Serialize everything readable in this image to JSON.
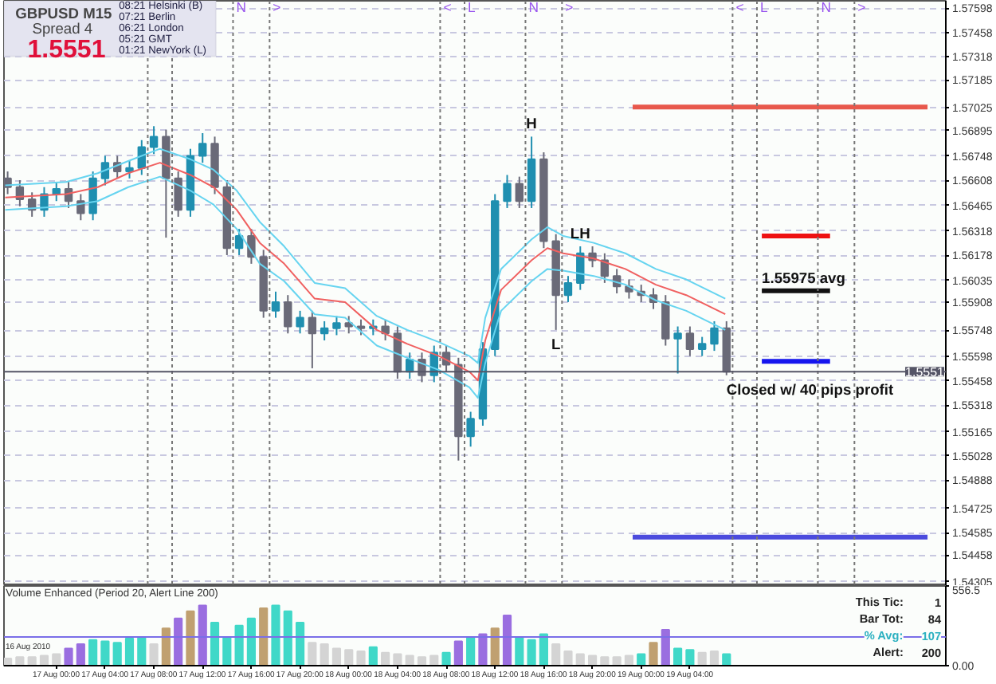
{
  "chart_data": [
    {
      "type": "candlestick",
      "title": "GBPUSD  M15",
      "subtitle": "Spread  4",
      "x": [
        "2010-08-16T20:00",
        "2010-08-16T21:00",
        "2010-08-16T22:00",
        "2010-08-16T23:00",
        "2010-08-17T00:00",
        "2010-08-17T01:00",
        "2010-08-17T02:00",
        "2010-08-17T03:00",
        "2010-08-17T04:00",
        "2010-08-17T05:00",
        "2010-08-17T06:00",
        "2010-08-17T07:00",
        "2010-08-17T08:00",
        "2010-08-17T09:00",
        "2010-08-17T10:00",
        "2010-08-17T11:00",
        "2010-08-17T12:00",
        "2010-08-17T13:00",
        "2010-08-17T14:00",
        "2010-08-17T15:00",
        "2010-08-17T16:00",
        "2010-08-17T17:00",
        "2010-08-17T18:00",
        "2010-08-17T19:00",
        "2010-08-17T20:00",
        "2010-08-17T21:00",
        "2010-08-17T22:00",
        "2010-08-17T23:00",
        "2010-08-18T00:00",
        "2010-08-18T01:00",
        "2010-08-18T02:00",
        "2010-08-18T03:00",
        "2010-08-18T04:00",
        "2010-08-18T05:00",
        "2010-08-18T06:00",
        "2010-08-18T07:00",
        "2010-08-18T08:00",
        "2010-08-18T09:00",
        "2010-08-18T10:00",
        "2010-08-18T11:00",
        "2010-08-18T12:00",
        "2010-08-18T13:00",
        "2010-08-18T14:00",
        "2010-08-18T15:00",
        "2010-08-18T16:00",
        "2010-08-18T17:00",
        "2010-08-18T18:00",
        "2010-08-18T19:00",
        "2010-08-18T20:00",
        "2010-08-18T21:00",
        "2010-08-18T22:00",
        "2010-08-18T23:00",
        "2010-08-19T00:00",
        "2010-08-19T01:00",
        "2010-08-19T02:00",
        "2010-08-19T03:00",
        "2010-08-19T04:00",
        "2010-08-19T05:00",
        "2010-08-19T06:00",
        "2010-08-19T07:00"
      ],
      "ohlc": [
        [
          1.5662,
          1.5666,
          1.5653,
          1.5657
        ],
        [
          1.5657,
          1.5661,
          1.5646,
          1.565
        ],
        [
          1.565,
          1.5654,
          1.564,
          1.5644
        ],
        [
          1.5644,
          1.5657,
          1.564,
          1.5653
        ],
        [
          1.5653,
          1.566,
          1.5649,
          1.5656
        ],
        [
          1.5656,
          1.566,
          1.5645,
          1.5649
        ],
        [
          1.5649,
          1.5653,
          1.5638,
          1.5642
        ],
        [
          1.5642,
          1.5666,
          1.5638,
          1.5662
        ],
        [
          1.5662,
          1.5675,
          1.5658,
          1.5671
        ],
        [
          1.5671,
          1.5675,
          1.5662,
          1.5666
        ],
        [
          1.5666,
          1.5672,
          1.5662,
          1.5668
        ],
        [
          1.5668,
          1.5684,
          1.5664,
          1.568
        ],
        [
          1.568,
          1.5692,
          1.5676,
          1.5686
        ],
        [
          1.5686,
          1.569,
          1.5628,
          1.5662
        ],
        [
          1.5662,
          1.5666,
          1.564,
          1.5644
        ],
        [
          1.5644,
          1.5679,
          1.564,
          1.5675
        ],
        [
          1.5675,
          1.5688,
          1.5671,
          1.5682
        ],
        [
          1.5682,
          1.5686,
          1.5653,
          1.5657
        ],
        [
          1.5657,
          1.5661,
          1.5618,
          1.5622
        ],
        [
          1.5622,
          1.5633,
          1.5618,
          1.5629
        ],
        [
          1.5629,
          1.5633,
          1.5613,
          1.5617
        ],
        [
          1.5617,
          1.5621,
          1.5582,
          1.5586
        ],
        [
          1.5586,
          1.5597,
          1.5582,
          1.5591
        ],
        [
          1.5591,
          1.5595,
          1.5573,
          1.5577
        ],
        [
          1.5577,
          1.5586,
          1.5573,
          1.5582
        ],
        [
          1.5582,
          1.5586,
          1.5553,
          1.5573
        ],
        [
          1.5573,
          1.558,
          1.5569,
          1.5576
        ],
        [
          1.5576,
          1.5583,
          1.5572,
          1.5579
        ],
        [
          1.5579,
          1.5583,
          1.5573,
          1.5577
        ],
        [
          1.5577,
          1.5581,
          1.5572,
          1.5576
        ],
        [
          1.5576,
          1.5581,
          1.5572,
          1.5577
        ],
        [
          1.5577,
          1.5581,
          1.5569,
          1.5573
        ],
        [
          1.5573,
          1.5577,
          1.5547,
          1.5551
        ],
        [
          1.5551,
          1.5562,
          1.5547,
          1.5558
        ],
        [
          1.5558,
          1.5562,
          1.5545,
          1.5549
        ],
        [
          1.5549,
          1.5566,
          1.5545,
          1.5562
        ],
        [
          1.5562,
          1.5566,
          1.5551,
          1.5555
        ],
        [
          1.5555,
          1.5559,
          1.55,
          1.5514
        ],
        [
          1.5514,
          1.5528,
          1.5508,
          1.5524
        ],
        [
          1.5524,
          1.5568,
          1.552,
          1.5564
        ],
        [
          1.5564,
          1.5653,
          1.556,
          1.5649
        ],
        [
          1.5649,
          1.5664,
          1.5645,
          1.5659
        ],
        [
          1.5659,
          1.5663,
          1.5645,
          1.5649
        ],
        [
          1.5649,
          1.5686,
          1.5645,
          1.5673
        ],
        [
          1.5673,
          1.5677,
          1.5622,
          1.5626
        ],
        [
          1.5626,
          1.563,
          1.5575,
          1.5595
        ],
        [
          1.5595,
          1.5606,
          1.5591,
          1.5602
        ],
        [
          1.5602,
          1.5623,
          1.5598,
          1.5619
        ],
        [
          1.5619,
          1.5623,
          1.5611,
          1.5615
        ],
        [
          1.5615,
          1.5619,
          1.5602,
          1.5606
        ],
        [
          1.5606,
          1.561,
          1.5596,
          1.56
        ],
        [
          1.56,
          1.5604,
          1.5593,
          1.5597
        ],
        [
          1.5597,
          1.5601,
          1.5591,
          1.5595
        ],
        [
          1.5595,
          1.5599,
          1.5587,
          1.5591
        ],
        [
          1.5591,
          1.5595,
          1.5566,
          1.557
        ],
        [
          1.557,
          1.5577,
          1.555,
          1.5573
        ],
        [
          1.5573,
          1.5577,
          1.556,
          1.5564
        ],
        [
          1.5564,
          1.5571,
          1.556,
          1.5567
        ],
        [
          1.5567,
          1.558,
          1.5563,
          1.5576
        ],
        [
          1.5576,
          1.558,
          1.5549,
          1.5551
        ]
      ],
      "series": [
        {
          "type": "line",
          "color": "#66d4f0",
          "x": [
            "2010-08-16T19:48",
            "2010-08-17T00:48",
            "2010-08-17T03:24",
            "2010-08-17T05:54",
            "2010-08-17T08:30",
            "2010-08-17T11:00",
            "2010-08-17T12:54",
            "2010-08-17T14:48",
            "2010-08-17T16:42",
            "2010-08-17T18:42",
            "2010-08-17T21:12",
            "2010-08-17T23:42",
            "2010-08-18T02:18",
            "2010-08-18T04:48",
            "2010-08-18T07:24",
            "2010-08-18T09:54",
            "2010-08-18T10:36",
            "2010-08-18T11:12",
            "2010-08-18T12:30",
            "2010-08-18T15:00",
            "2010-08-18T16:18",
            "2010-08-18T17:36",
            "2010-08-18T20:06",
            "2010-08-18T22:42",
            "2010-08-19T01:12",
            "2010-08-19T03:42",
            "2010-08-19T06:54"
          ],
          "values": [
            1.5658,
            1.566,
            1.5665,
            1.5672,
            1.5679,
            1.5673,
            1.5667,
            1.5655,
            1.5637,
            1.5623,
            1.5602,
            1.5599,
            1.5583,
            1.5575,
            1.5568,
            1.556,
            1.5556,
            1.5582,
            1.561,
            1.5627,
            1.5634,
            1.5629,
            1.5625,
            1.5619,
            1.561,
            1.5604,
            1.5593
          ]
        },
        {
          "type": "line",
          "color": "#f06060",
          "x": [
            "2010-08-16T19:48",
            "2010-08-17T00:48",
            "2010-08-17T03:24",
            "2010-08-17T05:54",
            "2010-08-17T08:30",
            "2010-08-17T11:00",
            "2010-08-17T12:54",
            "2010-08-17T14:48",
            "2010-08-17T16:42",
            "2010-08-17T18:42",
            "2010-08-17T21:12",
            "2010-08-17T23:42",
            "2010-08-18T02:18",
            "2010-08-18T04:48",
            "2010-08-18T07:24",
            "2010-08-18T09:54",
            "2010-08-18T10:36",
            "2010-08-18T11:12",
            "2010-08-18T12:30",
            "2010-08-18T15:00",
            "2010-08-18T16:18",
            "2010-08-18T17:36",
            "2010-08-18T20:06",
            "2010-08-18T22:42",
            "2010-08-19T01:12",
            "2010-08-19T03:42",
            "2010-08-19T06:54"
          ],
          "values": [
            1.5651,
            1.5653,
            1.5657,
            1.5665,
            1.5671,
            1.5664,
            1.5657,
            1.5644,
            1.5625,
            1.5613,
            1.5593,
            1.5591,
            1.5575,
            1.5567,
            1.556,
            1.5551,
            1.5546,
            1.5569,
            1.5598,
            1.5615,
            1.5622,
            1.5619,
            1.5616,
            1.561,
            1.5601,
            1.5595,
            1.5584
          ]
        },
        {
          "type": "line",
          "color": "#66d4f0",
          "x": [
            "2010-08-16T19:48",
            "2010-08-17T00:48",
            "2010-08-17T03:24",
            "2010-08-17T05:54",
            "2010-08-17T08:30",
            "2010-08-17T11:00",
            "2010-08-17T12:54",
            "2010-08-17T14:48",
            "2010-08-17T16:42",
            "2010-08-17T18:42",
            "2010-08-17T21:12",
            "2010-08-17T23:42",
            "2010-08-18T02:18",
            "2010-08-18T04:48",
            "2010-08-18T07:24",
            "2010-08-18T09:54",
            "2010-08-18T10:36",
            "2010-08-18T11:12",
            "2010-08-18T12:30",
            "2010-08-18T15:00",
            "2010-08-18T16:18",
            "2010-08-18T17:36",
            "2010-08-18T20:06",
            "2010-08-18T22:42",
            "2010-08-19T01:12",
            "2010-08-19T03:42",
            "2010-08-19T06:54"
          ],
          "values": [
            1.5644,
            1.5646,
            1.5649,
            1.5657,
            1.5663,
            1.5655,
            1.5647,
            1.5633,
            1.5613,
            1.5603,
            1.5584,
            1.5582,
            1.5566,
            1.5559,
            1.5552,
            1.5542,
            1.5536,
            1.5556,
            1.5586,
            1.5603,
            1.561,
            1.5609,
            1.5606,
            1.5601,
            1.5592,
            1.5586,
            1.5575
          ]
        },
        {
          "type": "line",
          "color": "#e8584c",
          "x": [
            "2010-08-18T23:18",
            "2010-08-19T23:30"
          ],
          "values": [
            1.5703,
            1.5703
          ]
        },
        {
          "type": "line",
          "color": "#ee1111",
          "x": [
            "2010-08-19T09:54",
            "2010-08-19T15:30"
          ],
          "values": [
            1.5629,
            1.5629
          ]
        },
        {
          "type": "line",
          "color": "#111111",
          "x": [
            "2010-08-19T09:54",
            "2010-08-19T15:30"
          ],
          "values": [
            1.55975,
            1.55975
          ]
        },
        {
          "type": "line",
          "color": "#1515ee",
          "x": [
            "2010-08-19T09:54",
            "2010-08-19T15:30"
          ],
          "values": [
            1.5557,
            1.5557
          ]
        },
        {
          "type": "line",
          "color": "#4b4bdd",
          "x": [
            "2010-08-18T23:18",
            "2010-08-19T23:30"
          ],
          "values": [
            1.5456,
            1.5456
          ]
        }
      ],
      "xlim": [
        "2010-08-16T19:42",
        "2010-08-20T01:00"
      ],
      "ylim": [
        1.5428,
        1.5764
      ],
      "yticks": [
        1.57598,
        1.57458,
        1.57318,
        1.57185,
        1.57025,
        1.56895,
        1.56748,
        1.56608,
        1.56465,
        1.56318,
        1.56178,
        1.56035,
        1.55908,
        1.55748,
        1.55598,
        1.55458,
        1.55318,
        1.55165,
        1.55028,
        1.54888,
        1.54725,
        1.54585,
        1.54458,
        1.54305
      ],
      "tick_labels": "y",
      "grid": "y",
      "ref_lines": [
        {
          "axis": "x",
          "value": "2010-08-17T07:30",
          "label": null
        },
        {
          "axis": "x",
          "value": "2010-08-17T09:30",
          "label": null
        },
        {
          "axis": "x",
          "value": "2010-08-17T14:30",
          "label": "N"
        },
        {
          "axis": "x",
          "value": "2010-08-17T17:30",
          "label": ">"
        },
        {
          "axis": "x",
          "value": "2010-08-18T07:30",
          "label": "<"
        },
        {
          "axis": "x",
          "value": "2010-08-18T09:30",
          "label": "L"
        },
        {
          "axis": "x",
          "value": "2010-08-18T14:30",
          "label": "N"
        },
        {
          "axis": "x",
          "value": "2010-08-18T17:30",
          "label": ">"
        },
        {
          "axis": "x",
          "value": "2010-08-19T07:30",
          "label": "<"
        },
        {
          "axis": "x",
          "value": "2010-08-19T09:30",
          "label": "L"
        },
        {
          "axis": "x",
          "value": "2010-08-19T14:30",
          "label": "N"
        },
        {
          "axis": "x",
          "value": "2010-08-19T17:30",
          "label": ">"
        },
        {
          "axis": "y",
          "value": 1.5551,
          "label": "1.5551",
          "color": "#555566"
        }
      ],
      "annotations": [
        "1.5551",
        "08:21  Helsinki (B)",
        "07:21  Berlin",
        "06:21  London",
        "05:21  GMT",
        "01:21  NewYork (L)",
        {
          "text": "H",
          "x": "2010-08-18T15:00",
          "y": 1.5686
        },
        {
          "text": "LH",
          "x": "2010-08-18T19:00",
          "y": 1.5623
        },
        {
          "text": "L",
          "x": "2010-08-18T17:00",
          "y": 1.5575
        },
        {
          "text": "1.55975 avg",
          "x": "2010-08-19T09:54",
          "y": 1.55975
        },
        {
          "text": "Closed w/ 40 pips profit",
          "x": "2010-08-19T07:00",
          "y": 1.5549
        }
      ]
    },
    {
      "type": "bar",
      "title": "Volume Enhanced  (Period 20, Alert Line 200)",
      "x": [
        "2010-08-16T20:00",
        "2010-08-16T21:00",
        "2010-08-16T22:00",
        "2010-08-16T23:00",
        "2010-08-17T00:00",
        "2010-08-17T01:00",
        "2010-08-17T02:00",
        "2010-08-17T03:00",
        "2010-08-17T04:00",
        "2010-08-17T05:00",
        "2010-08-17T06:00",
        "2010-08-17T07:00",
        "2010-08-17T08:00",
        "2010-08-17T09:00",
        "2010-08-17T10:00",
        "2010-08-17T11:00",
        "2010-08-17T12:00",
        "2010-08-17T13:00",
        "2010-08-17T14:00",
        "2010-08-17T15:00",
        "2010-08-17T16:00",
        "2010-08-17T17:00",
        "2010-08-17T18:00",
        "2010-08-17T19:00",
        "2010-08-17T20:00",
        "2010-08-17T21:00",
        "2010-08-17T22:00",
        "2010-08-17T23:00",
        "2010-08-18T00:00",
        "2010-08-18T01:00",
        "2010-08-18T02:00",
        "2010-08-18T03:00",
        "2010-08-18T04:00",
        "2010-08-18T05:00",
        "2010-08-18T06:00",
        "2010-08-18T07:00",
        "2010-08-18T08:00",
        "2010-08-18T09:00",
        "2010-08-18T10:00",
        "2010-08-18T11:00",
        "2010-08-18T12:00",
        "2010-08-18T13:00",
        "2010-08-18T14:00",
        "2010-08-18T15:00",
        "2010-08-18T16:00",
        "2010-08-18T17:00",
        "2010-08-18T18:00",
        "2010-08-18T19:00",
        "2010-08-18T20:00",
        "2010-08-18T21:00",
        "2010-08-18T22:00",
        "2010-08-18T23:00",
        "2010-08-19T00:00",
        "2010-08-19T01:00",
        "2010-08-19T02:00",
        "2010-08-19T03:00",
        "2010-08-19T04:00",
        "2010-08-19T05:00",
        "2010-08-19T06:00",
        "2010-08-19T07:00"
      ],
      "values": [
        50,
        60,
        60,
        70,
        80,
        120,
        150,
        180,
        170,
        160,
        190,
        200,
        150,
        260,
        330,
        380,
        420,
        300,
        200,
        280,
        330,
        400,
        420,
        380,
        300,
        160,
        150,
        120,
        110,
        100,
        130,
        90,
        80,
        70,
        60,
        70,
        90,
        170,
        200,
        220,
        260,
        350,
        200,
        180,
        220,
        150,
        100,
        80,
        70,
        60,
        60,
        70,
        80,
        160,
        250,
        120,
        110,
        90,
        100,
        80
      ],
      "colors": [
        "#d4d4d4",
        "#d4d4d4",
        "#d4d4d4",
        "#d4d4d4",
        "#d4d4d4",
        "#9a6ee0",
        "#9a6ee0",
        "#40d8c8",
        "#40d8c8",
        "#40d8c8",
        "#40d8c8",
        "#40d8c8",
        "#d4d4d4",
        "#c0a070",
        "#9a6ee0",
        "#c0a070",
        "#9a6ee0",
        "#40d8c8",
        "#40d8c8",
        "#40d8c8",
        "#40d8c8",
        "#c0a070",
        "#40d8c8",
        "#40d8c8",
        "#40d8c8",
        "#d4d4d4",
        "#d4d4d4",
        "#d4d4d4",
        "#d4d4d4",
        "#d4d4d4",
        "#40d8c8",
        "#d4d4d4",
        "#d4d4d4",
        "#d4d4d4",
        "#d4d4d4",
        "#d4d4d4",
        "#40d8c8",
        "#9a6ee0",
        "#40d8c8",
        "#9a6ee0",
        "#c0a070",
        "#9a6ee0",
        "#40d8c8",
        "#40d8c8",
        "#40d8c8",
        "#d4d4d4",
        "#d4d4d4",
        "#d4d4d4",
        "#d4d4d4",
        "#d4d4d4",
        "#d4d4d4",
        "#d4d4d4",
        "#40d8c8",
        "#c0a070",
        "#9a6ee0",
        "#40d8c8",
        "#40d8c8",
        "#d4d4d4",
        "#d4d4d4",
        "#40d8c8"
      ],
      "xlim": [
        "2010-08-16T19:42",
        "2010-08-20T01:00"
      ],
      "ylim": [
        0,
        556.5
      ],
      "yticks": [
        {
          "value": 0,
          "label": "0.00"
        },
        556.5
      ],
      "xticks": [
        {
          "value": "2010-08-17T00:00",
          "label": "17 Aug 00:00"
        },
        {
          "value": "2010-08-17T04:00",
          "label": "17 Aug 04:00"
        },
        {
          "value": "2010-08-17T08:00",
          "label": "17 Aug 08:00"
        },
        {
          "value": "2010-08-17T12:00",
          "label": "17 Aug 12:00"
        },
        {
          "value": "2010-08-17T16:00",
          "label": "17 Aug 16:00"
        },
        {
          "value": "2010-08-17T20:00",
          "label": "17 Aug 20:00"
        },
        {
          "value": "2010-08-18T00:00",
          "label": "18 Aug 00:00"
        },
        {
          "value": "2010-08-18T04:00",
          "label": "18 Aug 04:00"
        },
        {
          "value": "2010-08-18T08:00",
          "label": "18 Aug 08:00"
        },
        {
          "value": "2010-08-18T12:00",
          "label": "18 Aug 12:00"
        },
        {
          "value": "2010-08-18T16:00",
          "label": "18 Aug 16:00"
        },
        {
          "value": "2010-08-18T20:00",
          "label": "18 Aug 20:00"
        },
        {
          "value": "2010-08-19T00:00",
          "label": "19 Aug 00:00"
        },
        {
          "value": "2010-08-19T04:00",
          "label": "19 Aug 04:00"
        }
      ],
      "grid": false,
      "ref_lines": [
        {
          "axis": "y",
          "value": 200,
          "label": null,
          "color": "#7a6ee8"
        }
      ],
      "annotations": [
        "16 Aug 2010",
        "This Tic:",
        "1",
        "Bar Tot:",
        "84",
        "% Avg:",
        "107",
        "Alert:",
        "200"
      ]
    }
  ]
}
